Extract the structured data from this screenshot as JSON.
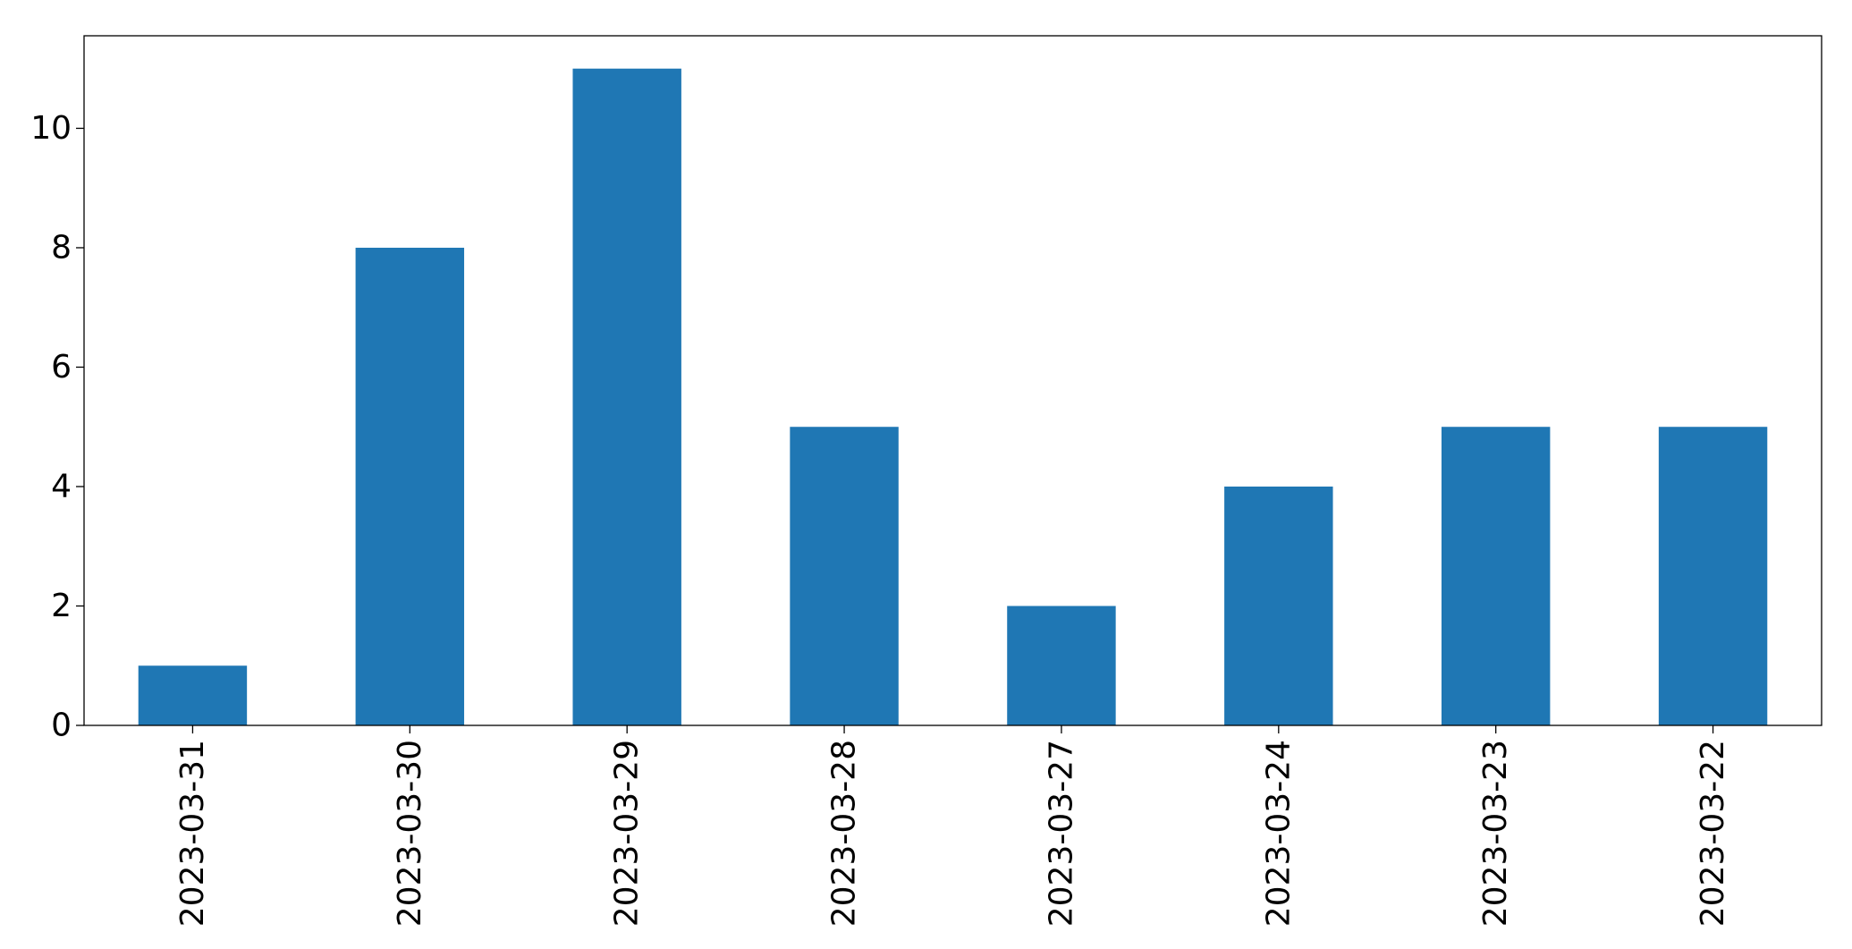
{
  "chart_data": {
    "type": "bar",
    "title": "",
    "xlabel": "",
    "ylabel": "",
    "categories": [
      "2023-03-31",
      "2023-03-30",
      "2023-03-29",
      "2023-03-28",
      "2023-03-27",
      "2023-03-24",
      "2023-03-23",
      "2023-03-22"
    ],
    "values": [
      1,
      8,
      11,
      5,
      2,
      4,
      5,
      5
    ],
    "ylim": [
      0,
      11.55
    ],
    "yticks": [
      0,
      2,
      4,
      6,
      8,
      10
    ],
    "bar_color": "#1f77b4",
    "grid": false,
    "legend": "none"
  }
}
